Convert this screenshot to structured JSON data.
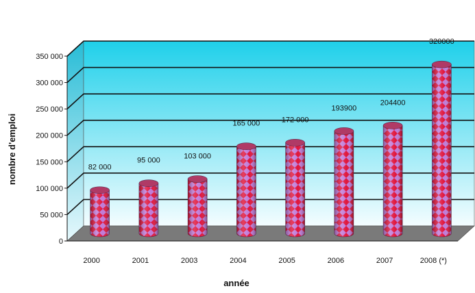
{
  "chart_data": {
    "type": "bar",
    "title": "",
    "xlabel": "année",
    "ylabel": "nombre d'emploi",
    "categories": [
      "2000",
      "2001",
      "2003",
      "2004",
      "2005",
      "2006",
      "2007",
      "2008 (*)"
    ],
    "values": [
      82000,
      95000,
      103000,
      165000,
      172000,
      193900,
      204400,
      320000
    ],
    "data_labels": [
      "82 000",
      "95 000",
      "103 000",
      "165 000",
      "172 000",
      "193900",
      "204400",
      "320000"
    ],
    "y_ticks": [
      0,
      50000,
      100000,
      150000,
      200000,
      250000,
      300000,
      350000
    ],
    "y_tick_labels": [
      "0",
      "50 000",
      "100 000",
      "150 000",
      "200 000",
      "250 000",
      "300 000",
      "350 000"
    ],
    "ylim": [
      0,
      350000
    ],
    "grid": true,
    "legend": "none",
    "style": "3d-cylinder",
    "colors": {
      "back_wall_top": "#1fd0ea",
      "back_wall_bottom": "#f4fdff",
      "floor": "#7a7a7a",
      "bar_base": "#c07ad8",
      "bar_pattern": "#e0143c",
      "bar_top": "#b03a66",
      "gridline": "#111111"
    }
  }
}
